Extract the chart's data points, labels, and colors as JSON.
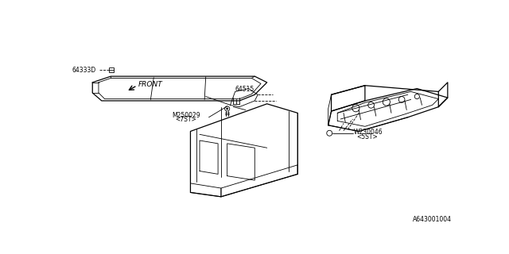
{
  "background_color": "#ffffff",
  "diagram_id": "A643001004",
  "labels": {
    "front_arrow": "FRONT",
    "part1": "M250029",
    "part1_sub": "<7ST>",
    "part2": "64515",
    "part3": "64333D",
    "part4": "W230046",
    "part4_sub": "<5ST>"
  },
  "line_color": "#000000",
  "lw_thin": 0.6,
  "lw_med": 0.9
}
